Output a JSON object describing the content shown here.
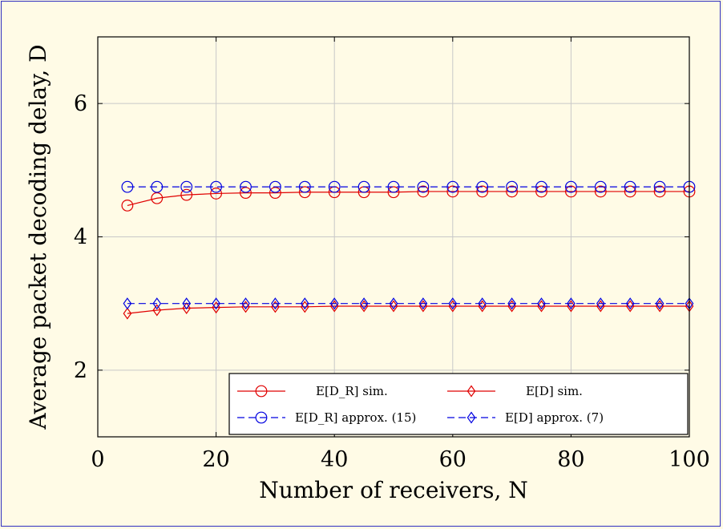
{
  "chart_data": {
    "type": "line",
    "xlabel": "Number of receivers, N",
    "ylabel": "Average packet decoding delay, D",
    "xlim": [
      0,
      100
    ],
    "ylim": [
      1,
      7
    ],
    "xticks": [
      0,
      20,
      40,
      60,
      80,
      100
    ],
    "yticks": [
      2,
      4,
      6
    ],
    "grid": true,
    "legend_position": "bottom-right",
    "x": [
      5,
      10,
      15,
      20,
      25,
      30,
      35,
      40,
      45,
      50,
      55,
      60,
      65,
      70,
      75,
      80,
      85,
      90,
      95,
      100
    ],
    "series": [
      {
        "name": "E[D_R] sim.",
        "legend_label": "E[D_R] sim.",
        "color": "#e00000",
        "line": "solid",
        "marker": "circle",
        "values": [
          4.47,
          4.58,
          4.63,
          4.65,
          4.66,
          4.66,
          4.67,
          4.67,
          4.67,
          4.67,
          4.68,
          4.68,
          4.68,
          4.68,
          4.68,
          4.68,
          4.68,
          4.68,
          4.68,
          4.68
        ]
      },
      {
        "name": "E[D] sim.",
        "legend_label": "E[D] sim.",
        "color": "#e00000",
        "line": "solid",
        "marker": "diamond",
        "values": [
          2.85,
          2.9,
          2.93,
          2.94,
          2.95,
          2.95,
          2.95,
          2.96,
          2.96,
          2.96,
          2.96,
          2.96,
          2.96,
          2.96,
          2.96,
          2.96,
          2.96,
          2.96,
          2.96,
          2.96
        ]
      },
      {
        "name": "E[D_R] approx. (15)",
        "legend_label": "E[D_R] approx. (15)",
        "color": "#0000e0",
        "line": "dashed",
        "marker": "circle",
        "values": [
          4.75,
          4.75,
          4.75,
          4.75,
          4.75,
          4.75,
          4.75,
          4.75,
          4.75,
          4.75,
          4.75,
          4.75,
          4.75,
          4.75,
          4.75,
          4.75,
          4.75,
          4.75,
          4.75,
          4.75
        ]
      },
      {
        "name": "E[D] approx. (7)",
        "legend_label": "E[D] approx. (7)",
        "color": "#0000e0",
        "line": "dashed",
        "marker": "diamond",
        "values": [
          3.0,
          3.0,
          3.0,
          3.0,
          3.0,
          3.0,
          3.0,
          3.0,
          3.0,
          3.0,
          3.0,
          3.0,
          3.0,
          3.0,
          3.0,
          3.0,
          3.0,
          3.0,
          3.0,
          3.0
        ]
      }
    ]
  }
}
